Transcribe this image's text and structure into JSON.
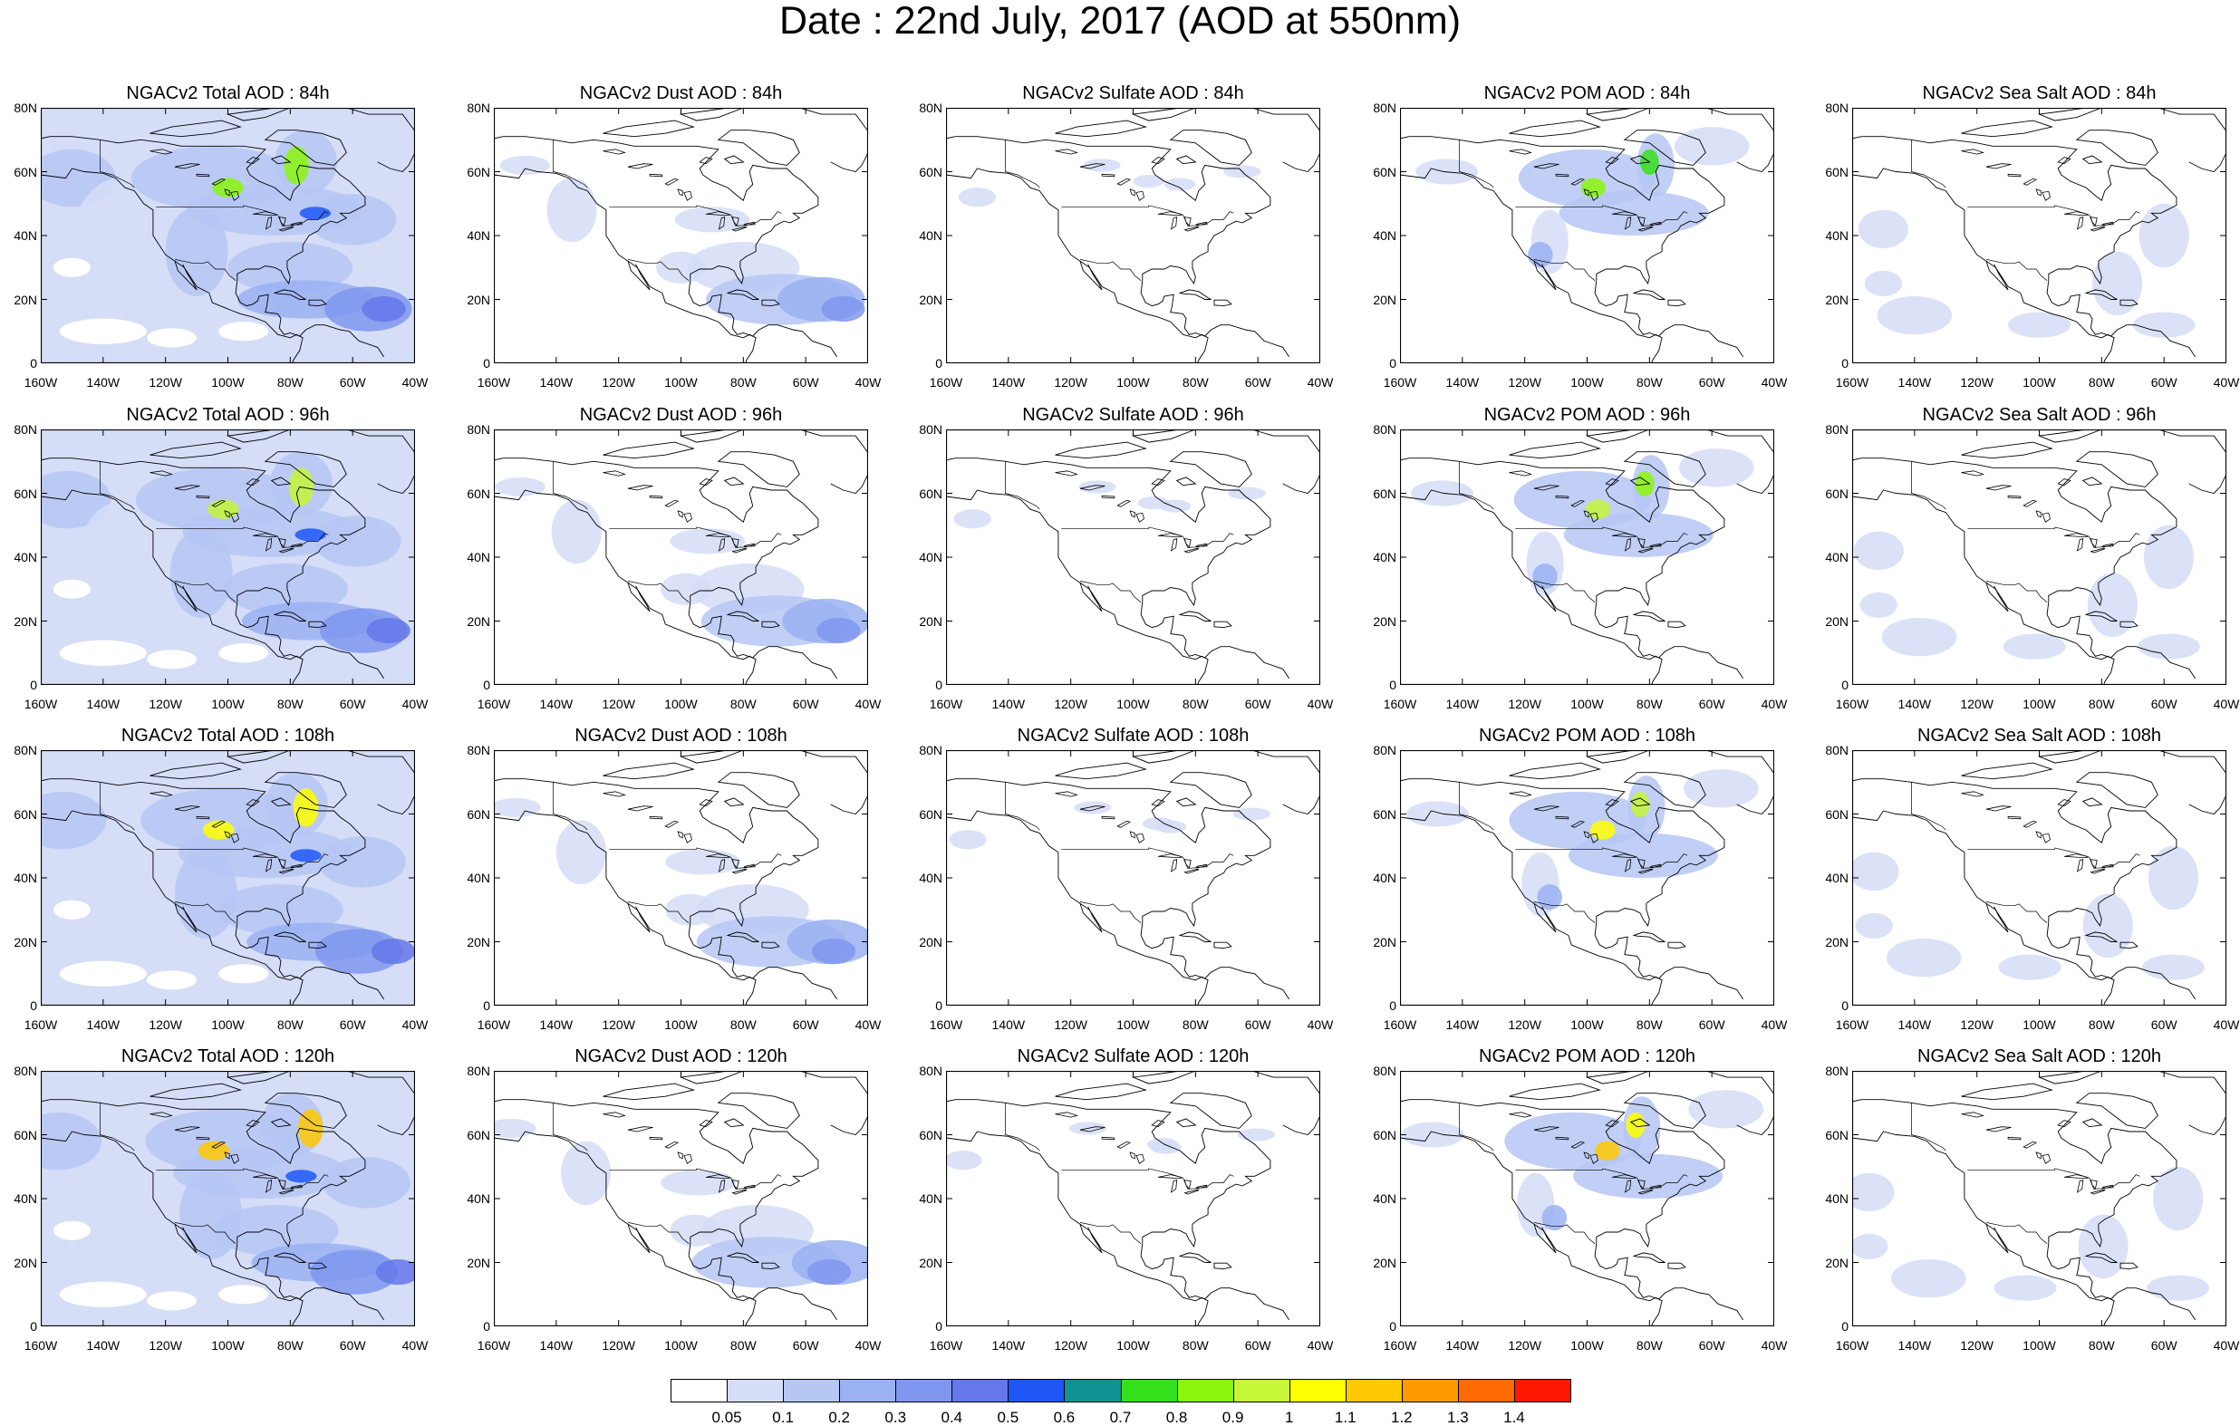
{
  "title": "Date : 22nd July, 2017 (AOD at 550nm)",
  "lat_ticks": [
    "80N",
    "60N",
    "40N",
    "20N",
    "0"
  ],
  "lon_ticks": [
    "160W",
    "140W",
    "120W",
    "100W",
    "80W",
    "60W",
    "40W"
  ],
  "panels": [
    [
      {
        "title": "NGACv2 Total AOD : 84h",
        "species": "total"
      },
      {
        "title": "NGACv2 Dust AOD : 84h",
        "species": "dust"
      },
      {
        "title": "NGACv2 Sulfate AOD : 84h",
        "species": "sulfate"
      },
      {
        "title": "NGACv2 POM AOD : 84h",
        "species": "pom"
      },
      {
        "title": "NGACv2 Sea Salt AOD : 84h",
        "species": "seasalt"
      }
    ],
    [
      {
        "title": "NGACv2 Total AOD : 96h",
        "species": "total"
      },
      {
        "title": "NGACv2 Dust AOD : 96h",
        "species": "dust"
      },
      {
        "title": "NGACv2 Sulfate AOD : 96h",
        "species": "sulfate"
      },
      {
        "title": "NGACv2 POM AOD : 96h",
        "species": "pom"
      },
      {
        "title": "NGACv2 Sea Salt AOD : 96h",
        "species": "seasalt"
      }
    ],
    [
      {
        "title": "NGACv2 Total AOD : 108h",
        "species": "total"
      },
      {
        "title": "NGACv2 Dust AOD : 108h",
        "species": "dust"
      },
      {
        "title": "NGACv2 Sulfate AOD : 108h",
        "species": "sulfate"
      },
      {
        "title": "NGACv2 POM AOD : 108h",
        "species": "pom"
      },
      {
        "title": "NGACv2 Sea Salt AOD : 108h",
        "species": "seasalt"
      }
    ],
    [
      {
        "title": "NGACv2 Total AOD : 120h",
        "species": "total"
      },
      {
        "title": "NGACv2 Dust AOD : 120h",
        "species": "dust"
      },
      {
        "title": "NGACv2 Sulfate AOD : 120h",
        "species": "sulfate"
      },
      {
        "title": "NGACv2 POM AOD : 120h",
        "species": "pom"
      },
      {
        "title": "NGACv2 Sea Salt  AOD : 120h",
        "species": "seasalt"
      }
    ]
  ],
  "colorbar": {
    "labels": [
      "0.05",
      "0.1",
      "0.2",
      "0.3",
      "0.4",
      "0.5",
      "0.6",
      "0.7",
      "0.8",
      "0.9",
      "1",
      "1.1",
      "1.2",
      "1.3",
      "1.4"
    ],
    "colors": [
      "#ffffff",
      "#d5ddf7",
      "#b6c7f4",
      "#9ab1f2",
      "#7f97ee",
      "#6478ea",
      "#1f57f7",
      "#0f9292",
      "#35e01c",
      "#8af60b",
      "#c6f637",
      "#ffff00",
      "#ffc800",
      "#ff9b00",
      "#ff6a00",
      "#ff1800"
    ]
  }
}
